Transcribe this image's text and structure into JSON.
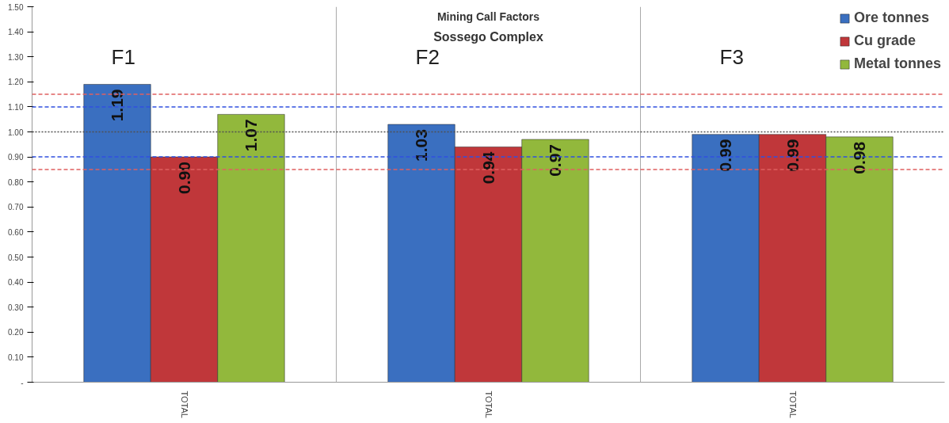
{
  "chart_data": {
    "type": "bar",
    "title": "Mining Call Factors",
    "subtitle": "Sossego Complex",
    "annotations": [
      "F1",
      "F2",
      "F3"
    ],
    "categories": [
      "TOTAL",
      "TOTAL",
      "TOTAL"
    ],
    "series": [
      {
        "name": "Ore tonnes",
        "color": "#3a6fc0",
        "values": [
          1.19,
          1.03,
          0.99
        ],
        "value_labels": [
          "1.19",
          "1.03",
          "0.99"
        ]
      },
      {
        "name": "Cu grade",
        "color": "#c0373a",
        "values": [
          0.9,
          0.94,
          0.99
        ],
        "value_labels": [
          "0.90",
          "0.94",
          "0.99"
        ]
      },
      {
        "name": "Metal tonnes",
        "color": "#92b83c",
        "values": [
          1.07,
          0.97,
          0.98
        ],
        "value_labels": [
          "1.07",
          "0.97",
          "0.98"
        ]
      }
    ],
    "ylim": [
      0,
      1.5
    ],
    "yticks": [
      {
        "value": 0,
        "label": "-"
      },
      {
        "value": 0.1,
        "label": "0.10"
      },
      {
        "value": 0.2,
        "label": "0.20"
      },
      {
        "value": 0.3,
        "label": "0.30"
      },
      {
        "value": 0.4,
        "label": "0.40"
      },
      {
        "value": 0.5,
        "label": "0.50"
      },
      {
        "value": 0.6,
        "label": "0.60"
      },
      {
        "value": 0.7,
        "label": "0.70"
      },
      {
        "value": 0.8,
        "label": "0.80"
      },
      {
        "value": 0.9,
        "label": "0.90"
      },
      {
        "value": 1.0,
        "label": "1.00"
      },
      {
        "value": 1.1,
        "label": "1.10"
      },
      {
        "value": 1.2,
        "label": "1.20"
      },
      {
        "value": 1.3,
        "label": "1.30"
      },
      {
        "value": 1.4,
        "label": "1.40"
      },
      {
        "value": 1.5,
        "label": "1.50"
      }
    ],
    "ref_lines": [
      {
        "axis": "y",
        "value": 1.15,
        "color": "#e06060",
        "line_style": "dashed"
      },
      {
        "axis": "y",
        "value": 1.1,
        "color": "#3050e0",
        "line_style": "dashed"
      },
      {
        "axis": "y",
        "value": 1.0,
        "color": "#505050",
        "line_style": "dotted"
      },
      {
        "axis": "y",
        "value": 0.9,
        "color": "#3050e0",
        "line_style": "dashed"
      },
      {
        "axis": "y",
        "value": 0.85,
        "color": "#e06060",
        "line_style": "dashed"
      }
    ],
    "grid": false,
    "legend": "top right"
  }
}
